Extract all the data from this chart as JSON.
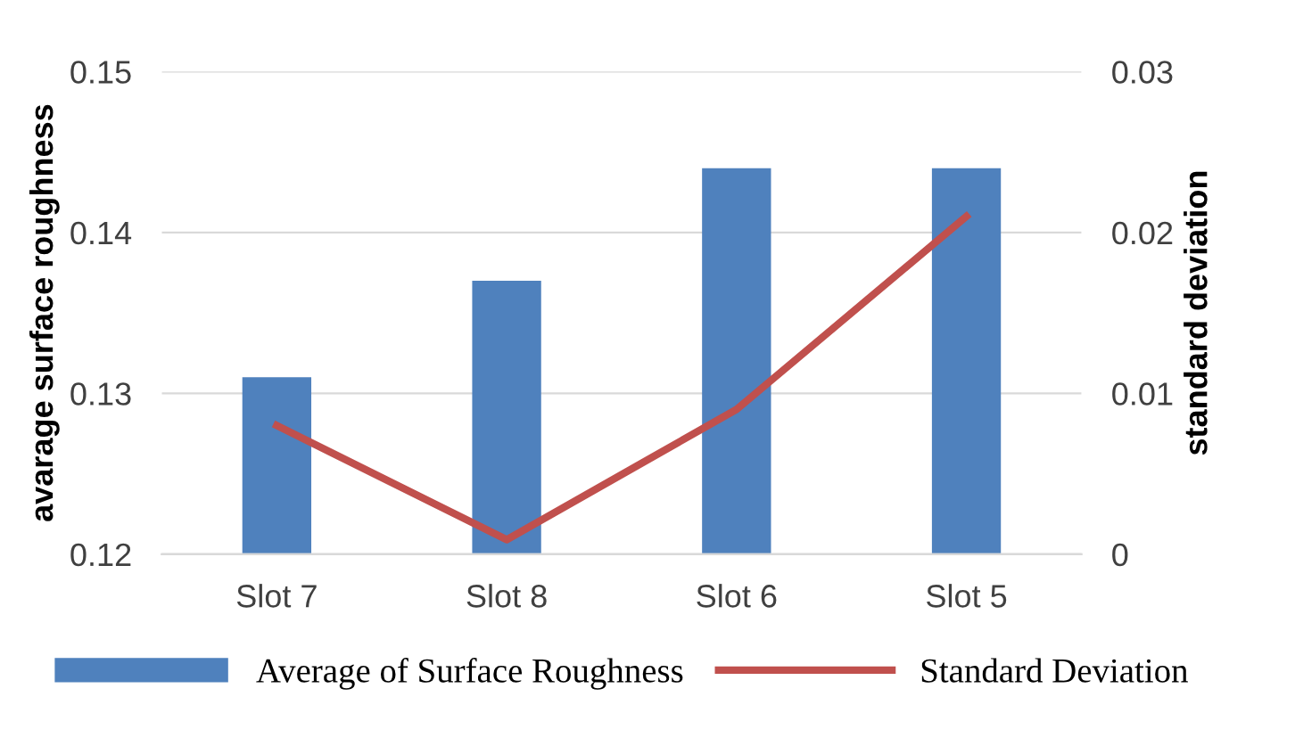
{
  "chart_data": {
    "type": "bar",
    "categories": [
      "Slot 7",
      "Slot 8",
      "Slot 6",
      "Slot 5"
    ],
    "ylabel": "avarage surface roughness",
    "y2label": "standard deviation",
    "series": [
      {
        "name": "Average of Surface Roughness",
        "color": "#4f81bd",
        "values": [
          0.131,
          0.137,
          0.144,
          0.144
        ]
      },
      {
        "name": "Standard Deviation",
        "type": "line",
        "axis": "y2",
        "color": "#c0504d",
        "values": [
          0.008,
          0.0009,
          0.009,
          0.021
        ]
      }
    ],
    "ylim": [
      0.12,
      0.15
    ],
    "yticks": [
      0.12,
      0.13,
      0.14,
      0.15
    ],
    "y2lim": [
      0,
      0.03
    ],
    "y2ticks": [
      0,
      0.01,
      0.02,
      0.03
    ],
    "grid": "y",
    "legend": "bottom",
    "marker": "none",
    "line_style": "solid"
  }
}
